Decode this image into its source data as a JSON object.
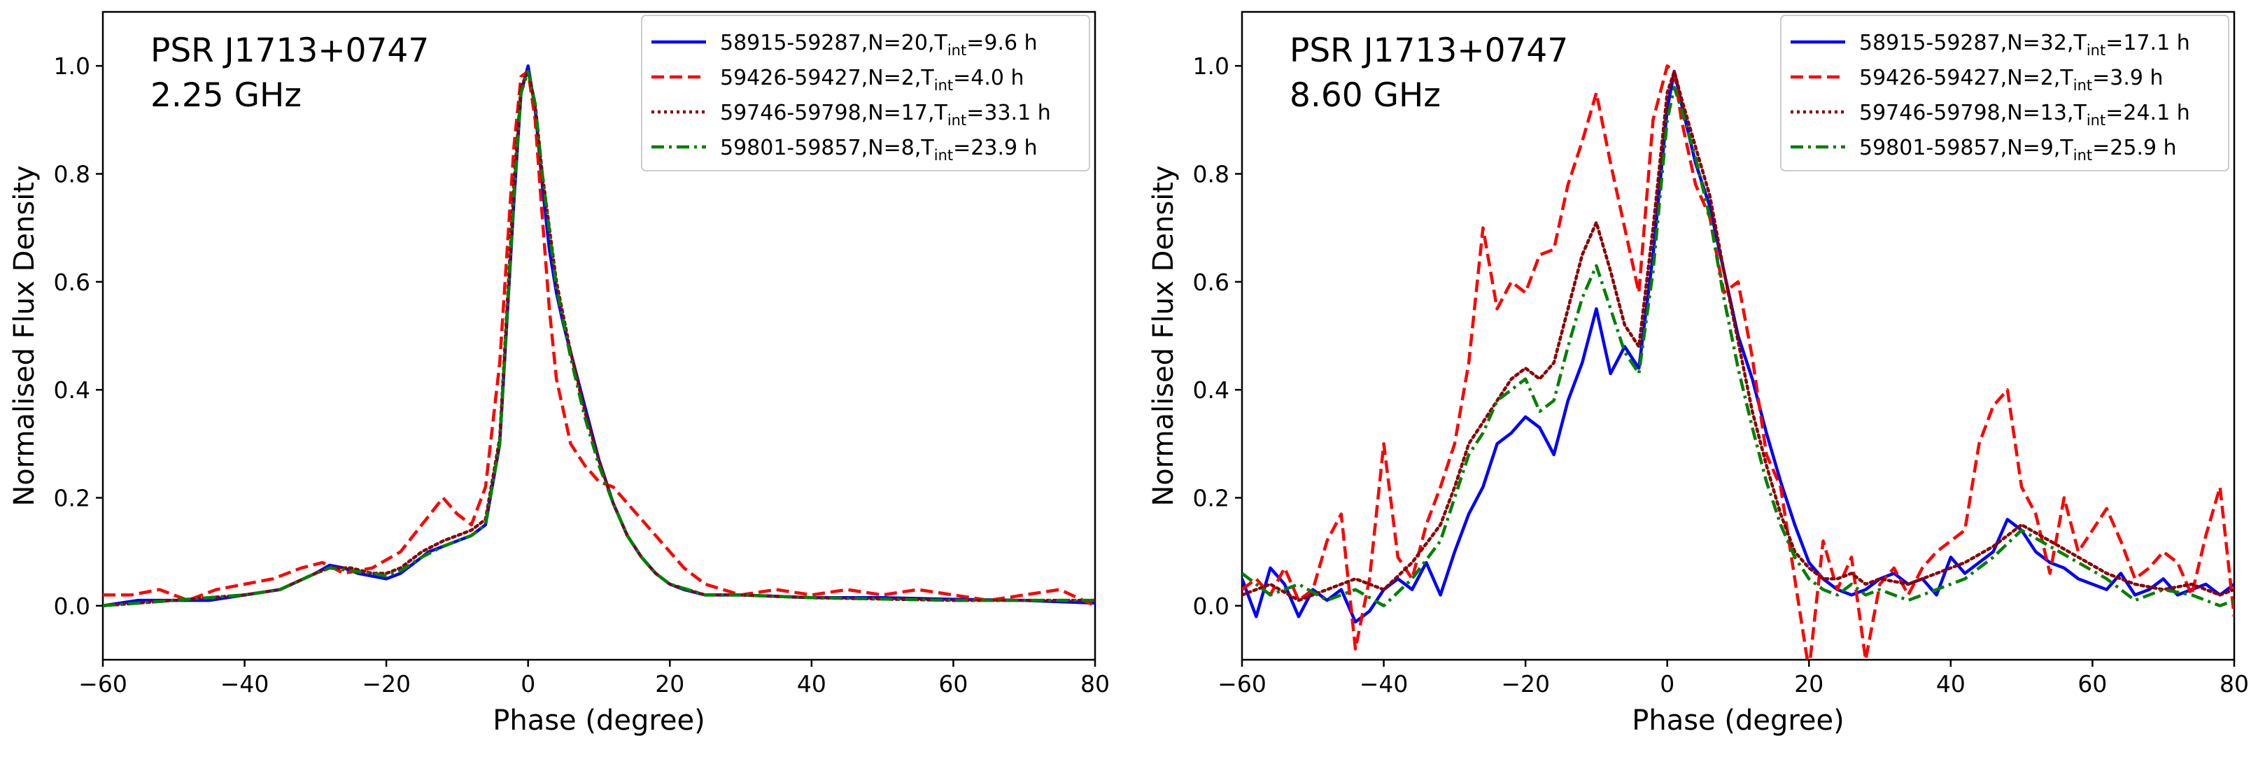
{
  "chart_data": [
    {
      "type": "line",
      "panel": "left",
      "annotation": [
        "PSR J1713+0747",
        "2.25 GHz"
      ],
      "xlabel": "Phase (degree)",
      "ylabel": "Normalised Flux Density",
      "xlim": [
        -60,
        80
      ],
      "ylim": [
        -0.1,
        1.1
      ],
      "xticks": [
        "−60",
        "−40",
        "−20",
        "0",
        "20",
        "40",
        "60",
        "80"
      ],
      "yticks": [
        "0.0",
        "0.2",
        "0.4",
        "0.6",
        "0.8",
        "1.0"
      ],
      "legend_position": "upper-right",
      "series": [
        {
          "name": "58915-59287,N=20,T_int=9.6 h",
          "label_main": "58915-59287,N=20,T",
          "label_sub": "int",
          "label_tail": "=9.6 h",
          "color": "#0000ff",
          "dash": "solid",
          "x": [
            -60,
            -55,
            -50,
            -45,
            -40,
            -35,
            -30,
            -28,
            -26,
            -24,
            -22,
            -20,
            -18,
            -16,
            -14,
            -12,
            -10,
            -8,
            -6,
            -4,
            -2,
            -1,
            0,
            1,
            2,
            3,
            4,
            5,
            6,
            8,
            10,
            12,
            14,
            16,
            18,
            20,
            22,
            25,
            30,
            40,
            50,
            60,
            70,
            80
          ],
          "y": [
            0.0,
            0.01,
            0.01,
            0.01,
            0.02,
            0.03,
            0.06,
            0.075,
            0.07,
            0.06,
            0.055,
            0.05,
            0.06,
            0.08,
            0.1,
            0.11,
            0.12,
            0.13,
            0.15,
            0.3,
            0.75,
            0.95,
            1.0,
            0.92,
            0.78,
            0.66,
            0.58,
            0.52,
            0.47,
            0.37,
            0.27,
            0.19,
            0.13,
            0.09,
            0.06,
            0.04,
            0.03,
            0.02,
            0.02,
            0.015,
            0.015,
            0.012,
            0.01,
            0.005
          ]
        },
        {
          "name": "59426-59427,N=2,T_int=4.0 h",
          "label_main": "59426-59427,N=2,T",
          "label_sub": "int",
          "label_tail": "=4.0 h",
          "color": "#ff0000",
          "dash": "dashed",
          "x": [
            -60,
            -56,
            -52,
            -48,
            -44,
            -40,
            -36,
            -32,
            -29,
            -26,
            -22,
            -18,
            -15,
            -12,
            -10,
            -8,
            -6,
            -4,
            -2,
            -1,
            0,
            1,
            2,
            3,
            4,
            5,
            6,
            8,
            10,
            12,
            14,
            16,
            18,
            20,
            22,
            25,
            30,
            35,
            40,
            45,
            50,
            55,
            60,
            65,
            70,
            75,
            80
          ],
          "y": [
            0.02,
            0.02,
            0.03,
            0.01,
            0.03,
            0.04,
            0.05,
            0.07,
            0.08,
            0.06,
            0.07,
            0.1,
            0.15,
            0.2,
            0.17,
            0.15,
            0.22,
            0.45,
            0.85,
            0.98,
            0.99,
            0.9,
            0.72,
            0.55,
            0.42,
            0.36,
            0.3,
            0.26,
            0.23,
            0.22,
            0.19,
            0.16,
            0.13,
            0.1,
            0.07,
            0.04,
            0.02,
            0.03,
            0.02,
            0.03,
            0.02,
            0.03,
            0.02,
            0.01,
            0.02,
            0.03,
            0.0
          ]
        },
        {
          "name": "59746-59798,N=17,T_int=33.1 h",
          "label_main": "59746-59798,N=17,T",
          "label_sub": "int",
          "label_tail": "=33.1 h",
          "color": "#8b0000",
          "dash": "dotted",
          "x": [
            -60,
            -50,
            -40,
            -35,
            -30,
            -28,
            -25,
            -22,
            -20,
            -18,
            -15,
            -12,
            -10,
            -8,
            -6,
            -4,
            -2,
            -1,
            0,
            1,
            2,
            4,
            6,
            8,
            10,
            12,
            14,
            16,
            18,
            20,
            25,
            30,
            40,
            60,
            80
          ],
          "y": [
            0.0,
            0.01,
            0.02,
            0.03,
            0.06,
            0.07,
            0.07,
            0.06,
            0.06,
            0.07,
            0.1,
            0.12,
            0.13,
            0.14,
            0.16,
            0.31,
            0.78,
            0.96,
            0.99,
            0.93,
            0.8,
            0.6,
            0.47,
            0.36,
            0.27,
            0.19,
            0.13,
            0.09,
            0.06,
            0.04,
            0.02,
            0.02,
            0.015,
            0.01,
            0.01
          ]
        },
        {
          "name": "59801-59857,N=8,T_int=23.9 h",
          "label_main": "59801-59857,N=8,T",
          "label_sub": "int",
          "label_tail": "=23.9 h",
          "color": "#008000",
          "dash": "dashdot",
          "x": [
            -60,
            -50,
            -40,
            -35,
            -30,
            -28,
            -25,
            -22,
            -20,
            -18,
            -15,
            -12,
            -10,
            -8,
            -6,
            -4,
            -2,
            -1,
            0,
            1,
            2,
            4,
            6,
            8,
            10,
            12,
            14,
            16,
            18,
            20,
            25,
            30,
            40,
            60,
            80
          ],
          "y": [
            0.0,
            0.01,
            0.02,
            0.03,
            0.06,
            0.07,
            0.065,
            0.06,
            0.055,
            0.065,
            0.09,
            0.11,
            0.12,
            0.13,
            0.15,
            0.3,
            0.76,
            0.95,
            0.99,
            0.93,
            0.8,
            0.59,
            0.46,
            0.35,
            0.26,
            0.19,
            0.13,
            0.09,
            0.06,
            0.04,
            0.02,
            0.02,
            0.015,
            0.01,
            0.01
          ]
        }
      ]
    },
    {
      "type": "line",
      "panel": "right",
      "annotation": [
        "PSR J1713+0747",
        "8.60 GHz"
      ],
      "xlabel": "Phase (degree)",
      "ylabel": "Normalised Flux Density",
      "xlim": [
        -60,
        80
      ],
      "ylim": [
        -0.1,
        1.1
      ],
      "xticks": [
        "−60",
        "−40",
        "−20",
        "0",
        "20",
        "40",
        "60",
        "80"
      ],
      "yticks": [
        "0.0",
        "0.2",
        "0.4",
        "0.6",
        "0.8",
        "1.0"
      ],
      "legend_position": "upper-right",
      "series": [
        {
          "name": "58915-59287,N=32,T_int=17.1 h",
          "label_main": "58915-59287,N=32,T",
          "label_sub": "int",
          "label_tail": "=17.1 h",
          "color": "#0000ff",
          "dash": "solid",
          "x": [
            -60,
            -58,
            -56,
            -54,
            -52,
            -50,
            -48,
            -46,
            -44,
            -42,
            -40,
            -38,
            -36,
            -34,
            -32,
            -30,
            -28,
            -26,
            -24,
            -22,
            -20,
            -18,
            -16,
            -14,
            -12,
            -10,
            -8,
            -6,
            -4,
            -2,
            0,
            1,
            2,
            4,
            6,
            8,
            10,
            12,
            14,
            16,
            18,
            20,
            22,
            24,
            26,
            28,
            30,
            32,
            34,
            36,
            38,
            40,
            42,
            44,
            46,
            48,
            50,
            52,
            54,
            56,
            58,
            60,
            62,
            64,
            66,
            68,
            70,
            72,
            74,
            76,
            78,
            80
          ],
          "y": [
            0.05,
            -0.02,
            0.07,
            0.04,
            -0.02,
            0.03,
            0.01,
            0.03,
            -0.03,
            -0.01,
            0.03,
            0.05,
            0.03,
            0.08,
            0.02,
            0.1,
            0.17,
            0.22,
            0.3,
            0.32,
            0.35,
            0.33,
            0.28,
            0.38,
            0.45,
            0.55,
            0.43,
            0.48,
            0.44,
            0.65,
            0.92,
            0.99,
            0.93,
            0.82,
            0.74,
            0.62,
            0.5,
            0.42,
            0.32,
            0.23,
            0.15,
            0.08,
            0.05,
            0.03,
            0.02,
            0.03,
            0.05,
            0.06,
            0.04,
            0.05,
            0.02,
            0.09,
            0.06,
            0.08,
            0.1,
            0.16,
            0.14,
            0.1,
            0.08,
            0.07,
            0.05,
            0.04,
            0.03,
            0.06,
            0.02,
            0.03,
            0.05,
            0.02,
            0.03,
            0.04,
            0.02,
            0.04
          ]
        },
        {
          "name": "59426-59427,N=2,T_int=3.9 h",
          "label_main": "59426-59427,N=2,T",
          "label_sub": "int",
          "label_tail": "=3.9 h",
          "color": "#ff0000",
          "dash": "dashed",
          "x": [
            -60,
            -58,
            -56,
            -54,
            -52,
            -50,
            -48,
            -46,
            -44,
            -42,
            -40,
            -38,
            -36,
            -34,
            -32,
            -30,
            -28,
            -26,
            -24,
            -22,
            -20,
            -18,
            -16,
            -14,
            -12,
            -10,
            -8,
            -6,
            -4,
            -2,
            0,
            1,
            2,
            4,
            6,
            8,
            10,
            12,
            14,
            16,
            18,
            20,
            22,
            24,
            26,
            28,
            30,
            32,
            34,
            36,
            38,
            40,
            42,
            44,
            46,
            48,
            50,
            52,
            54,
            56,
            58,
            60,
            62,
            64,
            66,
            68,
            70,
            72,
            74,
            76,
            78,
            80
          ],
          "y": [
            0.03,
            0.05,
            0.02,
            0.07,
            0.01,
            0.03,
            0.12,
            0.17,
            -0.08,
            0.05,
            0.3,
            0.09,
            0.05,
            0.15,
            0.22,
            0.3,
            0.45,
            0.7,
            0.55,
            0.6,
            0.58,
            0.65,
            0.66,
            0.78,
            0.86,
            0.95,
            0.82,
            0.7,
            0.58,
            0.9,
            1.0,
            0.99,
            0.9,
            0.78,
            0.72,
            0.58,
            0.6,
            0.46,
            0.28,
            0.22,
            0.05,
            -0.12,
            0.12,
            0.03,
            0.09,
            -0.1,
            0.04,
            0.07,
            0.02,
            0.07,
            0.1,
            0.12,
            0.14,
            0.3,
            0.37,
            0.4,
            0.22,
            0.17,
            0.06,
            0.2,
            0.1,
            0.14,
            0.18,
            0.12,
            0.05,
            0.07,
            0.1,
            0.08,
            0.02,
            0.13,
            0.22,
            -0.02
          ]
        },
        {
          "name": "59746-59798,N=13,T_int=24.1 h",
          "label_main": "59746-59798,N=13,T",
          "label_sub": "int",
          "label_tail": "=24.1 h",
          "color": "#8b0000",
          "dash": "dotted",
          "x": [
            -60,
            -56,
            -52,
            -48,
            -44,
            -40,
            -36,
            -32,
            -30,
            -28,
            -26,
            -24,
            -22,
            -20,
            -18,
            -16,
            -14,
            -12,
            -10,
            -8,
            -6,
            -4,
            -2,
            0,
            1,
            2,
            4,
            6,
            8,
            10,
            12,
            14,
            16,
            18,
            20,
            22,
            24,
            26,
            28,
            30,
            34,
            38,
            42,
            46,
            50,
            54,
            58,
            62,
            66,
            70,
            74,
            78,
            80
          ],
          "y": [
            0.02,
            0.04,
            0.01,
            0.03,
            0.05,
            0.03,
            0.08,
            0.15,
            0.22,
            0.3,
            0.34,
            0.38,
            0.42,
            0.44,
            0.42,
            0.45,
            0.55,
            0.65,
            0.71,
            0.62,
            0.52,
            0.48,
            0.7,
            0.95,
            0.99,
            0.94,
            0.85,
            0.76,
            0.62,
            0.49,
            0.36,
            0.26,
            0.17,
            0.1,
            0.07,
            0.05,
            0.05,
            0.06,
            0.04,
            0.05,
            0.04,
            0.06,
            0.08,
            0.11,
            0.15,
            0.12,
            0.09,
            0.06,
            0.04,
            0.03,
            0.04,
            0.02,
            0.03
          ]
        },
        {
          "name": "59801-59857,N=9,T_int=25.9 h",
          "label_main": "59801-59857,N=9,T",
          "label_sub": "int",
          "label_tail": "=25.9 h",
          "color": "#008000",
          "dash": "dashdot",
          "x": [
            -60,
            -56,
            -52,
            -48,
            -44,
            -40,
            -36,
            -32,
            -30,
            -28,
            -26,
            -24,
            -22,
            -20,
            -18,
            -16,
            -14,
            -12,
            -10,
            -8,
            -6,
            -4,
            -2,
            0,
            1,
            2,
            4,
            6,
            8,
            10,
            12,
            14,
            16,
            18,
            20,
            22,
            24,
            26,
            28,
            30,
            34,
            38,
            42,
            46,
            50,
            54,
            58,
            62,
            66,
            70,
            74,
            78,
            80
          ],
          "y": [
            0.06,
            0.02,
            0.04,
            0.01,
            0.03,
            0.0,
            0.05,
            0.12,
            0.2,
            0.28,
            0.32,
            0.38,
            0.4,
            0.42,
            0.36,
            0.38,
            0.48,
            0.57,
            0.63,
            0.55,
            0.47,
            0.43,
            0.62,
            0.9,
            0.96,
            0.92,
            0.83,
            0.72,
            0.57,
            0.44,
            0.33,
            0.23,
            0.15,
            0.09,
            0.05,
            0.03,
            0.02,
            0.04,
            0.02,
            0.03,
            0.01,
            0.03,
            0.05,
            0.09,
            0.14,
            0.11,
            0.08,
            0.05,
            0.01,
            0.03,
            0.02,
            0.0,
            0.01
          ]
        }
      ]
    }
  ]
}
